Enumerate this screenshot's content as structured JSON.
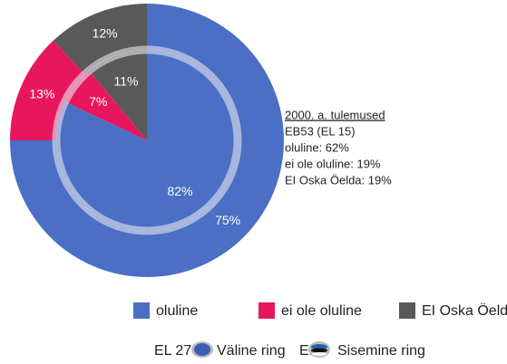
{
  "chart_data": {
    "type": "nested-donut",
    "categories": [
      "oluline",
      "ei ole oluline",
      "EI Oska Öelda"
    ],
    "colors": [
      "#4a6fc4",
      "#e8175d",
      "#595959"
    ],
    "series": [
      {
        "code": "EL 27",
        "name": "Väline ring",
        "values": [
          75,
          13,
          12
        ],
        "value_labels": [
          "75%",
          "13%",
          "12%"
        ]
      },
      {
        "code": "EE",
        "name": "Sisemine ring",
        "values": [
          82,
          7,
          11
        ],
        "value_labels": [
          "82%",
          "7%",
          "11%"
        ]
      }
    ],
    "annotation": [
      "2000. a. tulemused",
      "EB53 (EL 15)",
      "oluline: 62%",
      "ei ole oluline: 19%",
      "EI Oska Öelda: 19%"
    ]
  }
}
